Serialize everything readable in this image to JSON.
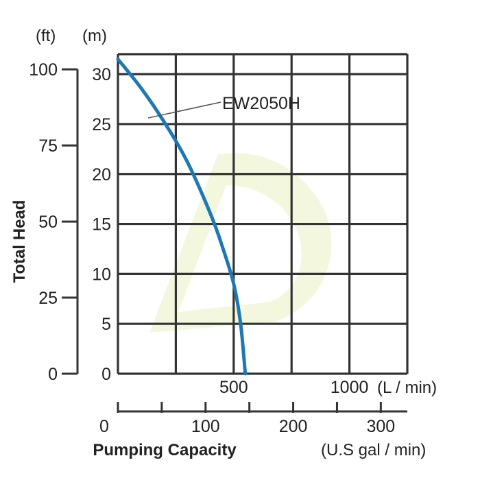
{
  "chart_data": {
    "type": "line",
    "title": "",
    "series": [
      {
        "name": "EW2050H",
        "x_l_per_min": [
          0,
          100,
          200,
          300,
          400,
          450,
          500,
          530,
          550
        ],
        "y_head_m": [
          31.5,
          28.6,
          25.2,
          21.2,
          16.0,
          12.8,
          9.0,
          5.0,
          0
        ],
        "color": "#1e78b4"
      }
    ],
    "series_label": "EW2050H",
    "y_axis": {
      "title": "Total Head",
      "unit_m": "(m)",
      "unit_ft": "(ft)",
      "m_ticks": [
        "0",
        "5",
        "10",
        "15",
        "20",
        "25",
        "30"
      ],
      "ft_ticks": [
        "0",
        "25",
        "50",
        "75",
        "100"
      ],
      "ylim_m": [
        0,
        32
      ]
    },
    "x_axis": {
      "title": "Pumping Capacity",
      "unit_l": "(L / min)",
      "unit_gal": "(U.S gal / min)",
      "l_ticks": [
        "500",
        "1000"
      ],
      "gal_ticks": [
        "0",
        "100",
        "200",
        "300"
      ],
      "xlim_l": [
        0,
        1250
      ]
    },
    "colors": {
      "curve": "#1e78b4",
      "grid": "#333333",
      "text": "#222222"
    }
  }
}
